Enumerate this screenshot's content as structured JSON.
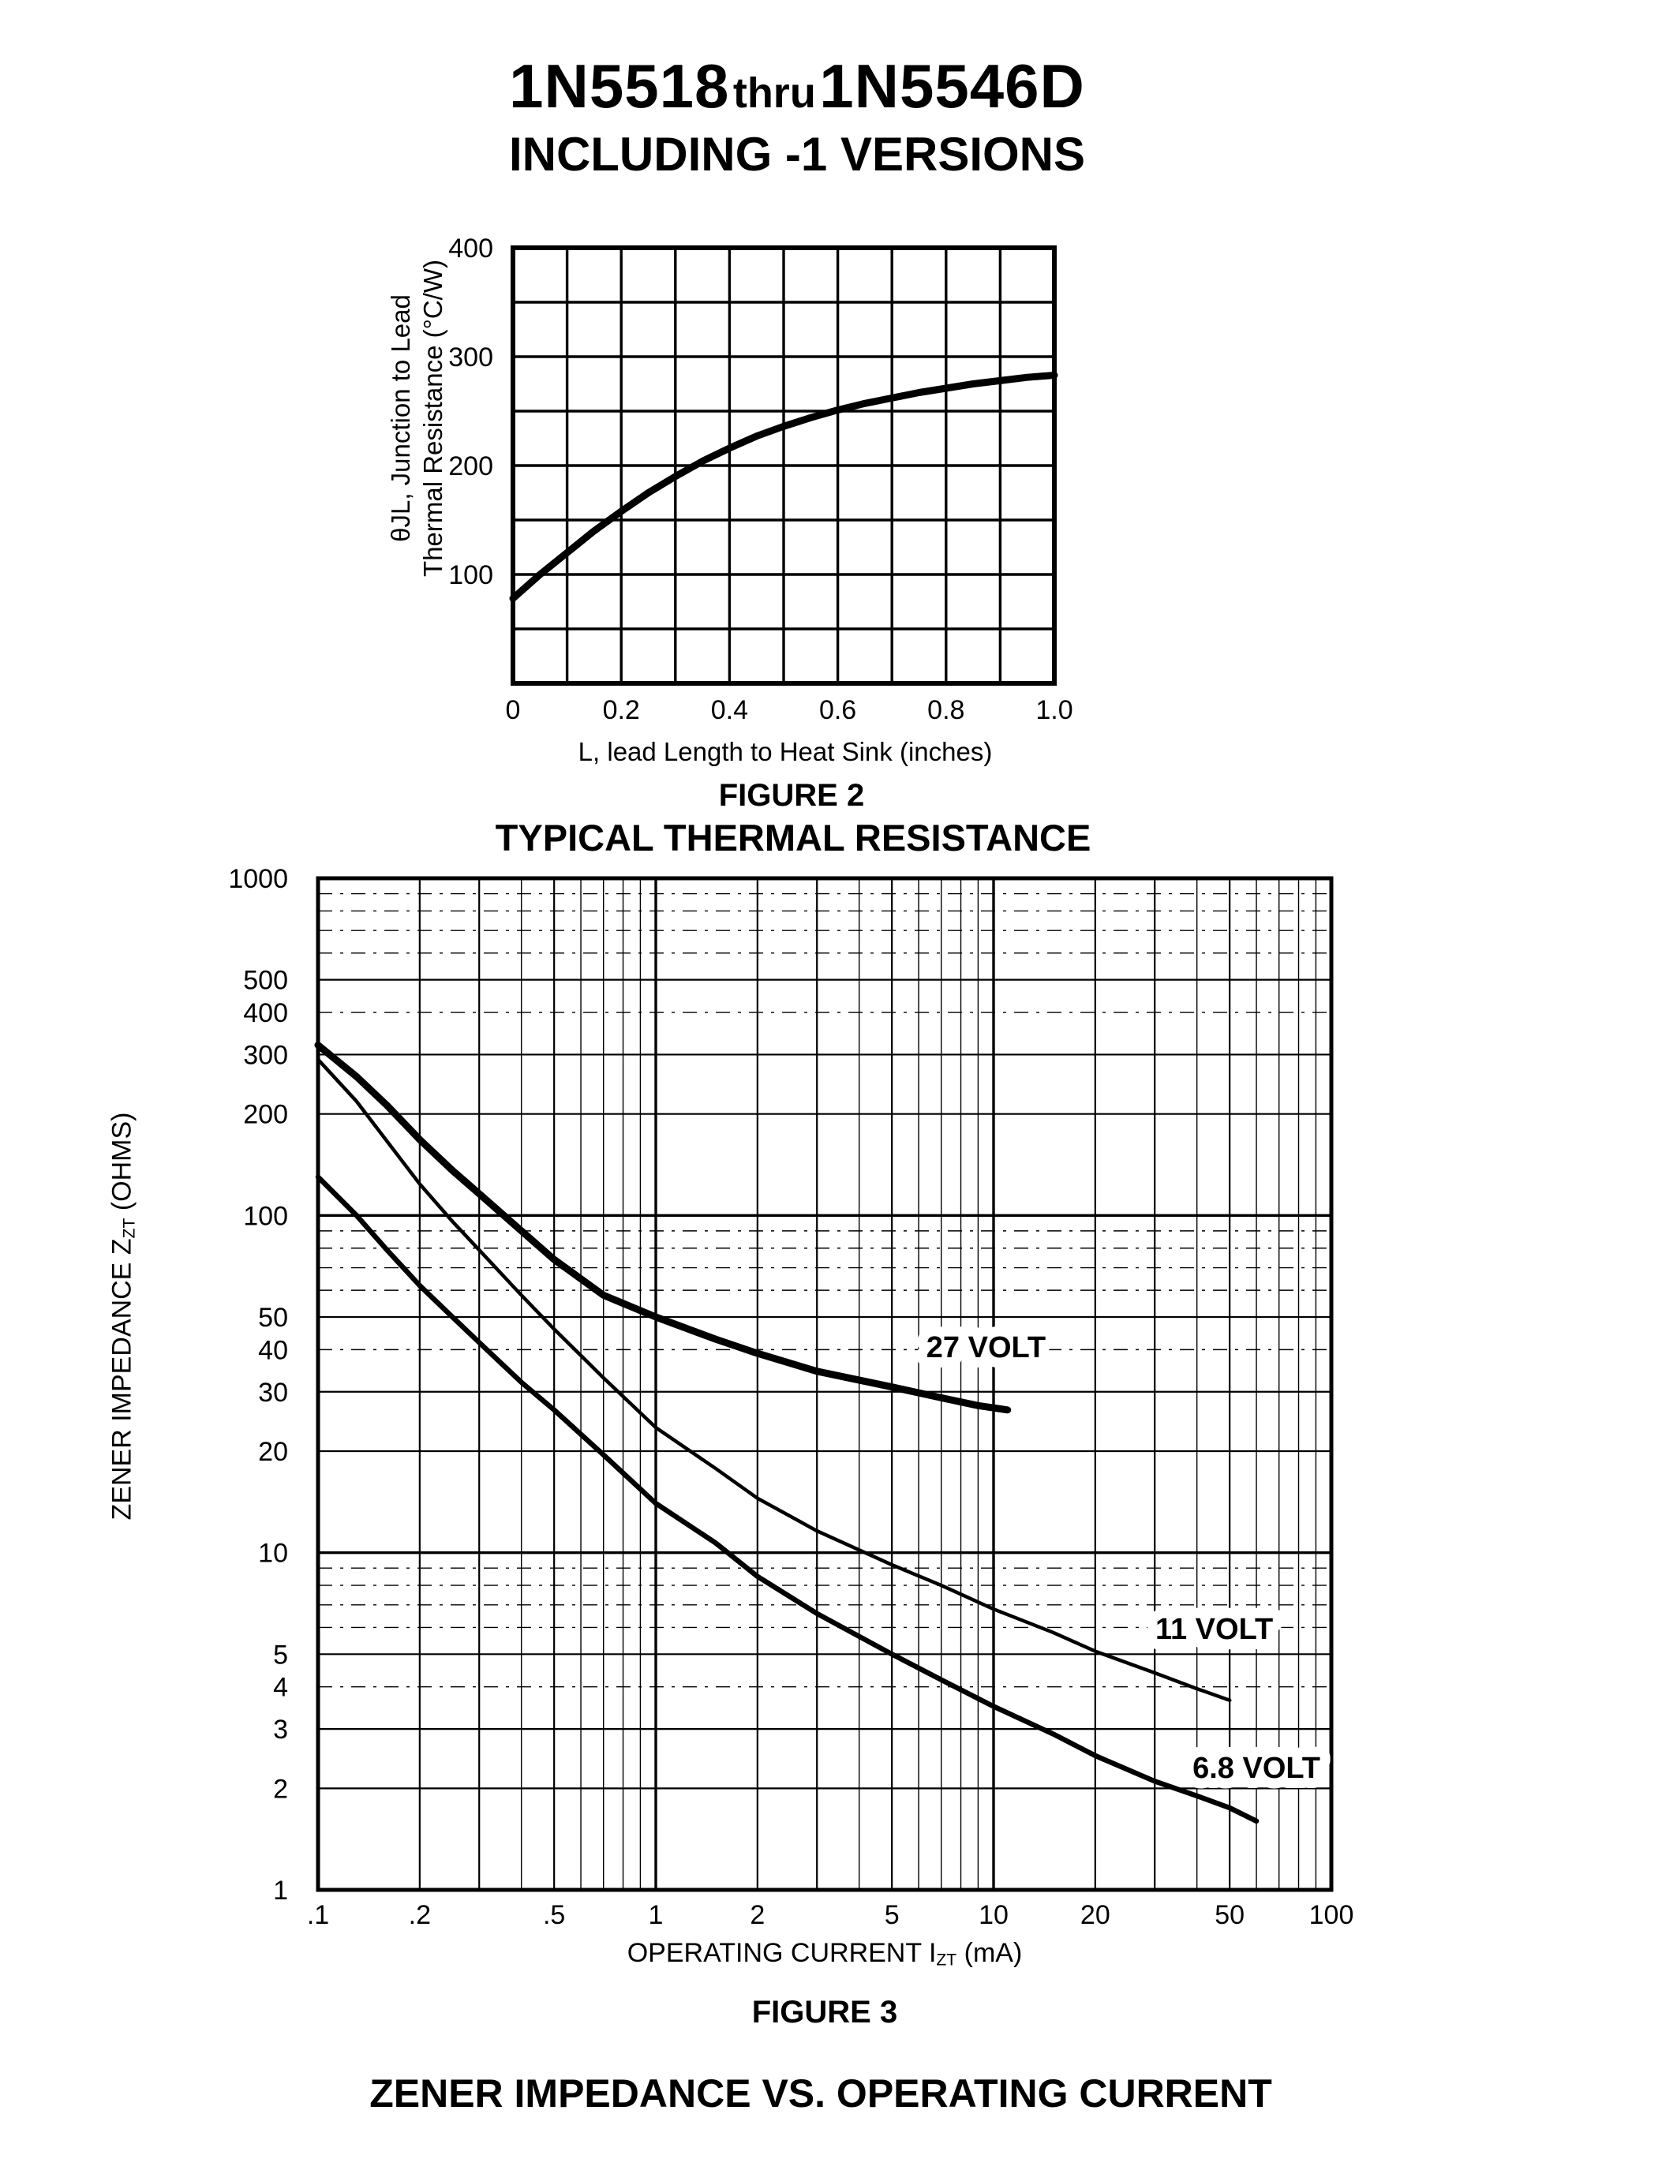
{
  "page": {
    "title_part1": "1N5518",
    "title_thru": "thru",
    "title_part2": "1N5546D",
    "subtitle": "INCLUDING -1 VERSIONS"
  },
  "figure2": {
    "figure_label": "FIGURE 2",
    "title": "TYPICAL THERMAL RESISTANCE",
    "y_axis_line1": "θJL, Junction to Lead",
    "y_axis_line2": "Thermal Resistance (°C/W)",
    "x_axis_label": "L, lead Length to Heat Sink (inches)"
  },
  "figure3": {
    "figure_label": "FIGURE 3",
    "title": "ZENER IMPEDANCE VS. OPERATING CURRENT",
    "y_axis_main": "ZENER IMPEDANCE Z",
    "y_axis_sub": "ZT",
    "y_axis_suffix": " (OHMS)",
    "x_axis_main": "OPERATING CURRENT I",
    "x_axis_sub": "ZT",
    "x_axis_suffix": " (mA)"
  },
  "chart_data": [
    {
      "id": "figure2",
      "type": "line",
      "scale": "linear",
      "figure_label": "FIGURE 2",
      "title": "TYPICAL THERMAL RESISTANCE",
      "xlabel": "L, lead Length to Heat Sink (inches)",
      "ylabel": "θJL, Junction to Lead Thermal Resistance (°C/W)",
      "xlim": [
        0,
        1.0
      ],
      "ylim": [
        0,
        400
      ],
      "x_grid_step": 0.1,
      "y_grid_step": 50,
      "x_major_ticks": [
        0,
        0.2,
        0.4,
        0.6,
        0.8,
        1.0
      ],
      "x_tick_labels": [
        "0",
        "0.2",
        "0.4",
        "0.6",
        "0.8",
        "1.0"
      ],
      "y_major_ticks": [
        100,
        200,
        300,
        400
      ],
      "grid": true,
      "line_color": "#000000",
      "series": [
        {
          "name": "junction-to-lead-thermal-resistance",
          "stroke_width": 9,
          "points": [
            [
              0,
              78
            ],
            [
              0.05,
              100
            ],
            [
              0.1,
              120
            ],
            [
              0.15,
              140
            ],
            [
              0.2,
              158
            ],
            [
              0.25,
              175
            ],
            [
              0.3,
              190
            ],
            [
              0.35,
              204
            ],
            [
              0.4,
              216
            ],
            [
              0.45,
              227
            ],
            [
              0.5,
              236
            ],
            [
              0.55,
              244
            ],
            [
              0.6,
              251
            ],
            [
              0.65,
              257
            ],
            [
              0.7,
              262
            ],
            [
              0.75,
              267
            ],
            [
              0.8,
              271
            ],
            [
              0.85,
              275
            ],
            [
              0.9,
              278
            ],
            [
              0.95,
              281
            ],
            [
              1.0,
              283
            ]
          ]
        }
      ]
    },
    {
      "id": "figure3",
      "type": "line",
      "scale": "log-log",
      "figure_label": "FIGURE 3",
      "title": "ZENER IMPEDANCE VS. OPERATING CURRENT",
      "xlabel": "OPERATING CURRENT IZT (mA)",
      "ylabel": "ZENER IMPEDANCE ZZT (OHMS)",
      "xlim": [
        0.1,
        100
      ],
      "ylim": [
        1,
        1000
      ],
      "x_tick_values": [
        0.1,
        0.2,
        0.5,
        1,
        2,
        5,
        10,
        20,
        50,
        100
      ],
      "x_tick_labels": [
        ".1",
        ".2",
        ".5",
        "1",
        "2",
        "5",
        "10",
        "20",
        "50",
        "100"
      ],
      "y_tick_values": [
        1000,
        500,
        400,
        300,
        200,
        100,
        50,
        40,
        30,
        20,
        10,
        5,
        4,
        3,
        2,
        1
      ],
      "y_tick_labels": [
        "1000",
        "500",
        "400",
        "300",
        "200",
        "100",
        "50",
        "40",
        "30",
        "20",
        "10",
        "5",
        "4",
        "3",
        "2",
        "1"
      ],
      "grid": true,
      "line_color": "#000000",
      "series": [
        {
          "name": "27 VOLT",
          "label": "27 VOLT",
          "label_at": [
            9.5,
            38
          ],
          "stroke_width": 9,
          "points": [
            [
              0.1,
              320
            ],
            [
              0.13,
              258
            ],
            [
              0.16,
              212
            ],
            [
              0.2,
              168
            ],
            [
              0.25,
              136
            ],
            [
              0.3,
              116
            ],
            [
              0.4,
              90
            ],
            [
              0.5,
              74
            ],
            [
              0.7,
              58
            ],
            [
              1,
              50
            ],
            [
              1.5,
              43
            ],
            [
              2,
              39
            ],
            [
              3,
              34.5
            ],
            [
              5,
              31
            ],
            [
              7,
              28.8
            ],
            [
              9,
              27.3
            ],
            [
              11,
              26.5
            ]
          ]
        },
        {
          "name": "11 VOLT",
          "label": "11 VOLT",
          "label_at": [
            45,
            5.55
          ],
          "stroke_width": 4.5,
          "points": [
            [
              0.1,
              290
            ],
            [
              0.13,
              218
            ],
            [
              0.16,
              166
            ],
            [
              0.2,
              124
            ],
            [
              0.25,
              96
            ],
            [
              0.3,
              79
            ],
            [
              0.4,
              58
            ],
            [
              0.5,
              46
            ],
            [
              0.7,
              33
            ],
            [
              1,
              23.5
            ],
            [
              1.5,
              17.8
            ],
            [
              2,
              14.5
            ],
            [
              3,
              11.6
            ],
            [
              5,
              9.2
            ],
            [
              7,
              8.0
            ],
            [
              10,
              6.8
            ],
            [
              15,
              5.8
            ],
            [
              20,
              5.1
            ],
            [
              30,
              4.4
            ],
            [
              40,
              3.95
            ],
            [
              50,
              3.65
            ]
          ]
        },
        {
          "name": "6.8 VOLT",
          "label": "6.8 VOLT",
          "label_at": [
            60,
            2.15
          ],
          "stroke_width": 6.5,
          "points": [
            [
              0.1,
              130
            ],
            [
              0.13,
              100
            ],
            [
              0.16,
              79
            ],
            [
              0.2,
              62
            ],
            [
              0.25,
              50
            ],
            [
              0.3,
              42
            ],
            [
              0.4,
              32
            ],
            [
              0.5,
              26.5
            ],
            [
              0.7,
              19.5
            ],
            [
              1,
              14
            ],
            [
              1.5,
              10.7
            ],
            [
              2,
              8.5
            ],
            [
              3,
              6.6
            ],
            [
              5,
              5.0
            ],
            [
              7,
              4.2
            ],
            [
              10,
              3.5
            ],
            [
              15,
              2.9
            ],
            [
              20,
              2.5
            ],
            [
              30,
              2.1
            ],
            [
              40,
              1.9
            ],
            [
              50,
              1.75
            ],
            [
              60,
              1.6
            ]
          ]
        }
      ]
    }
  ]
}
